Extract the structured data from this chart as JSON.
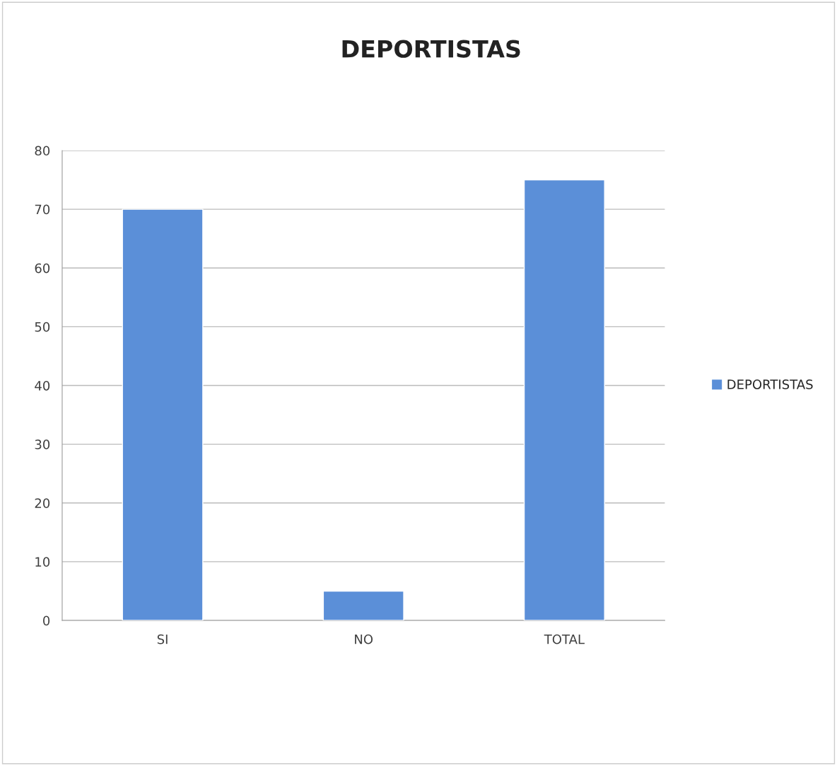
{
  "chart_data": {
    "type": "bar",
    "title": "DEPORTISTAS",
    "categories": [
      "SI",
      "NO",
      "TOTAL"
    ],
    "series": [
      {
        "name": "DEPORTISTAS",
        "color": "#5b8fd8",
        "values": [
          70,
          5,
          75
        ]
      }
    ],
    "ylim": [
      0,
      80
    ],
    "yticks": [
      0,
      10,
      20,
      30,
      40,
      50,
      60,
      70,
      80
    ],
    "grid": "y",
    "legend": "right"
  }
}
